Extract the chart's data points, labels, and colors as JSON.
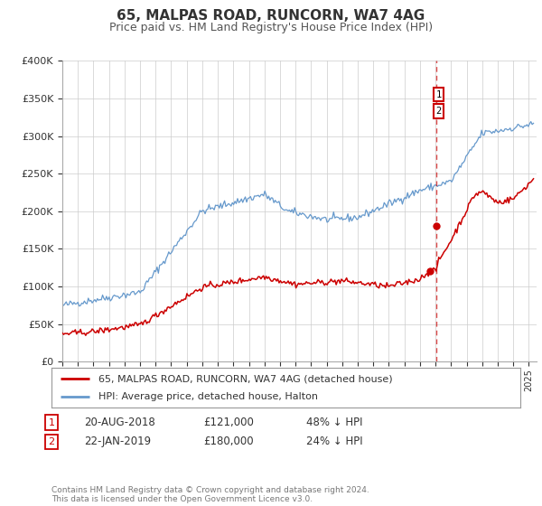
{
  "title": "65, MALPAS ROAD, RUNCORN, WA7 4AG",
  "subtitle": "Price paid vs. HM Land Registry's House Price Index (HPI)",
  "ylim": [
    0,
    400000
  ],
  "xlim_start": 1995.0,
  "xlim_end": 2025.5,
  "yticks": [
    0,
    50000,
    100000,
    150000,
    200000,
    250000,
    300000,
    350000,
    400000
  ],
  "ytick_labels": [
    "£0",
    "£50K",
    "£100K",
    "£150K",
    "£200K",
    "£250K",
    "£300K",
    "£350K",
    "£400K"
  ],
  "red_line_color": "#cc0000",
  "blue_line_color": "#6699cc",
  "vline_color": "#cc0000",
  "vline_x": 2019.05,
  "marker1_x": 2018.64,
  "marker1_y": 121000,
  "marker2_x": 2019.07,
  "marker2_y": 180000,
  "marker_color": "#cc0000",
  "legend_label_red": "65, MALPAS ROAD, RUNCORN, WA7 4AG (detached house)",
  "legend_label_blue": "HPI: Average price, detached house, Halton",
  "annotation_box_color": "#cc0000",
  "footer": "Contains HM Land Registry data © Crown copyright and database right 2024.\nThis data is licensed under the Open Government Licence v3.0.",
  "background_color": "#ffffff",
  "grid_color": "#cccccc",
  "title_fontsize": 11,
  "subtitle_fontsize": 9
}
